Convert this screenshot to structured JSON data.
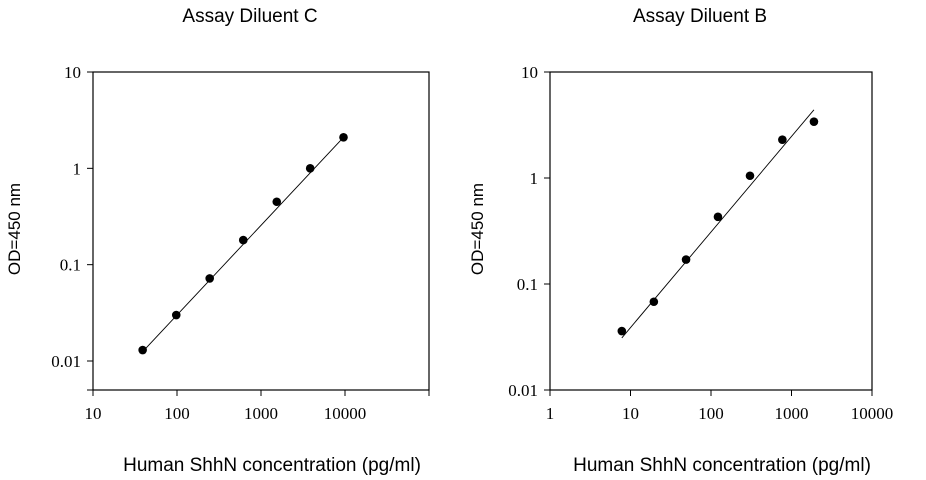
{
  "chart_data": [
    {
      "type": "scatter",
      "title": "Assay Diluent C",
      "xlabel": "Human ShhN concentration (pg/ml)",
      "ylabel": "OD=450 nm",
      "xscale": "log",
      "yscale": "log",
      "xlim": [
        10,
        100000
      ],
      "ylim": [
        0.005,
        10
      ],
      "xticks": [
        10,
        100,
        1000,
        10000
      ],
      "xtick_labels": [
        "10",
        "100",
        "1000",
        "10000"
      ],
      "yticks": [
        0.01,
        0.1,
        1,
        10
      ],
      "ytick_labels": [
        "0.01",
        "0.1",
        "1",
        "10"
      ],
      "grid": false,
      "points": {
        "x": [
          39,
          98,
          245,
          615,
          1540,
          3850,
          9600
        ],
        "y": [
          0.013,
          0.03,
          0.072,
          0.18,
          0.45,
          1.0,
          2.1
        ]
      },
      "fit": {
        "x": [
          39,
          9600
        ],
        "y": [
          0.0125,
          2.1
        ]
      }
    },
    {
      "type": "scatter",
      "title": "Assay Diluent B",
      "xlabel": "Human ShhN concentration (pg/ml)",
      "ylabel": "OD=450 nm",
      "xscale": "log",
      "yscale": "log",
      "xlim": [
        1,
        10000
      ],
      "ylim": [
        0.01,
        10
      ],
      "xticks": [
        1,
        10,
        100,
        1000,
        10000
      ],
      "xtick_labels": [
        "1",
        "10",
        "100",
        "1000",
        "10000"
      ],
      "yticks": [
        0.01,
        0.1,
        1,
        10
      ],
      "ytick_labels": [
        "0.01",
        "0.1",
        "1",
        "10"
      ],
      "grid": false,
      "points": {
        "x": [
          7.8,
          19.5,
          49,
          122,
          305,
          770,
          1900
        ],
        "y": [
          0.036,
          0.068,
          0.17,
          0.43,
          1.05,
          2.3,
          3.4
        ]
      },
      "fit": {
        "x": [
          7.8,
          1900
        ],
        "y": [
          0.031,
          4.4
        ]
      }
    }
  ]
}
